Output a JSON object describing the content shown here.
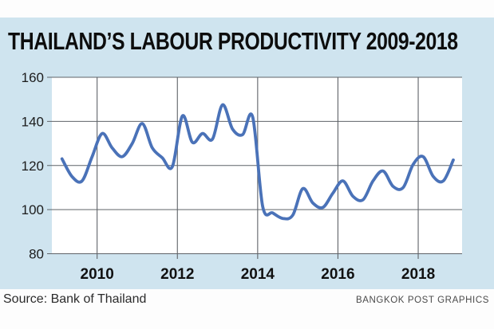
{
  "header": {
    "title": "THAILAND’S LABOUR PRODUCTIVITY 2009-2018"
  },
  "footer": {
    "source": "Source: Bank of Thailand",
    "credit": "BANGKOK POST GRAPHICS"
  },
  "colors": {
    "panel_bg": "#cfe4ef",
    "plot_bg": "#ffffff",
    "grid": "#5f6368",
    "line": "#4a72b8",
    "title_text": "#0d0d0d",
    "axis_text": "#1c1c1c"
  },
  "chart_data": {
    "type": "line",
    "title": "THAILAND’S LABOUR PRODUCTIVITY 2009-2018",
    "source": "Bank of Thailand",
    "frequency": "quarterly",
    "grid": true,
    "legend": "none",
    "xlim": [
      2008.873,
      2019.093
    ],
    "ylim": [
      80,
      160
    ],
    "xticks": [
      2010,
      2012,
      2014,
      2016,
      2018
    ],
    "yticks": [
      80,
      100,
      120,
      140,
      160
    ],
    "x": [
      2009.125,
      2009.375,
      2009.625,
      2009.875,
      2010.125,
      2010.375,
      2010.625,
      2010.875,
      2011.125,
      2011.375,
      2011.625,
      2011.875,
      2012.125,
      2012.375,
      2012.625,
      2012.875,
      2013.125,
      2013.375,
      2013.625,
      2013.875,
      2014.125,
      2014.375,
      2014.625,
      2014.875,
      2015.125,
      2015.375,
      2015.625,
      2015.875,
      2016.125,
      2016.375,
      2016.625,
      2016.875,
      2017.125,
      2017.375,
      2017.625,
      2017.875,
      2018.125,
      2018.375,
      2018.625,
      2018.875
    ],
    "values": [
      123,
      115,
      113,
      124,
      134.5,
      128,
      124,
      130,
      139,
      128,
      123.5,
      119.5,
      142.5,
      130.5,
      134.5,
      132,
      147.5,
      136.5,
      134,
      142,
      101.5,
      98.5,
      96,
      97.5,
      109.5,
      103,
      101,
      107.5,
      113,
      106,
      104.5,
      113,
      117.5,
      110.5,
      110,
      120.5,
      124,
      115,
      113,
      122.5
    ]
  }
}
